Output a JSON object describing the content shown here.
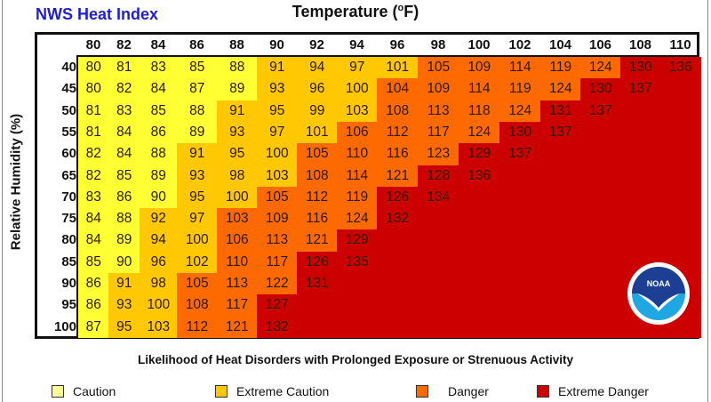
{
  "title": "NWS Heat Index",
  "x_title": "Temperature (",
  "x_title_unit_deg": "o",
  "x_title_unit": "F)",
  "y_title": "Relative Humidity (%)",
  "footer_note": "Likelihood of Heat Disorders with Prolonged Exposure or Strenuous Activity",
  "logo_text": "NOAA",
  "colors": {
    "caution": "#ffff33",
    "extreme_caution": "#ffc800",
    "danger": "#ff6a00",
    "extreme_danger": "#cc0000"
  },
  "legend": [
    {
      "key": "caution",
      "label": "Caution",
      "swatch": "#ffff99"
    },
    {
      "key": "extreme_caution",
      "label": "Extreme Caution",
      "swatch": "#ffc800"
    },
    {
      "key": "danger",
      "label": "Danger",
      "swatch": "#ff6a00"
    },
    {
      "key": "extreme_danger",
      "label": "Extreme Danger",
      "swatch": "#cc0000"
    }
  ],
  "chart_data": {
    "type": "heatmap",
    "title": "NWS Heat Index",
    "xlabel": "Temperature (°F)",
    "ylabel": "Relative Humidity (%)",
    "x": [
      "80",
      "82",
      "84",
      "86",
      "88",
      "90",
      "92",
      "94",
      "96",
      "98",
      "100",
      "102",
      "104",
      "106",
      "108",
      "110"
    ],
    "y": [
      "40",
      "45",
      "50",
      "55",
      "60",
      "65",
      "70",
      "75",
      "80",
      "85",
      "90",
      "95",
      "100"
    ],
    "values": [
      [
        80,
        81,
        83,
        85,
        88,
        91,
        94,
        97,
        101,
        105,
        109,
        114,
        119,
        124,
        130,
        136
      ],
      [
        80,
        82,
        84,
        87,
        89,
        93,
        96,
        100,
        104,
        109,
        114,
        119,
        124,
        130,
        137
      ],
      [
        81,
        83,
        85,
        88,
        91,
        95,
        99,
        103,
        108,
        113,
        118,
        124,
        131,
        137
      ],
      [
        81,
        84,
        86,
        89,
        93,
        97,
        101,
        106,
        112,
        117,
        124,
        130,
        137
      ],
      [
        82,
        84,
        88,
        91,
        95,
        100,
        105,
        110,
        116,
        123,
        129,
        137
      ],
      [
        82,
        85,
        89,
        93,
        98,
        103,
        108,
        114,
        121,
        128,
        136
      ],
      [
        83,
        86,
        90,
        95,
        100,
        105,
        112,
        119,
        126,
        134
      ],
      [
        84,
        88,
        92,
        97,
        103,
        109,
        116,
        124,
        132
      ],
      [
        84,
        89,
        94,
        100,
        106,
        113,
        121,
        129
      ],
      [
        85,
        90,
        96,
        102,
        110,
        117,
        126,
        135
      ],
      [
        86,
        91,
        98,
        105,
        113,
        122,
        131
      ],
      [
        86,
        93,
        100,
        108,
        117,
        127
      ],
      [
        87,
        95,
        103,
        112,
        121,
        132
      ]
    ],
    "category_counts_per_row": [
      [
        5,
        4,
        5
      ],
      [
        5,
        3,
        5
      ],
      [
        4,
        4,
        4
      ],
      [
        4,
        3,
        4
      ],
      [
        3,
        3,
        4
      ],
      [
        3,
        3,
        3
      ],
      [
        3,
        2,
        3
      ],
      [
        2,
        2,
        4
      ],
      [
        2,
        2,
        3
      ],
      [
        2,
        2,
        2
      ],
      [
        1,
        2,
        3
      ],
      [
        1,
        2,
        2
      ],
      [
        1,
        2,
        2
      ]
    ],
    "category_order": [
      "caution",
      "extreme_caution",
      "danger",
      "extreme_danger"
    ],
    "legend_position": "bottom"
  }
}
